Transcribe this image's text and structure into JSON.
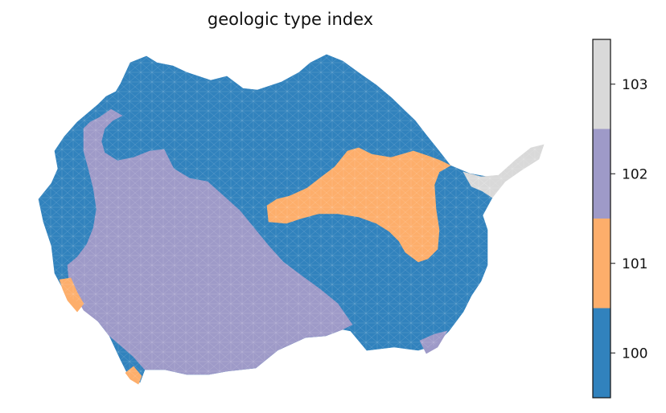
{
  "title": "geologic type index",
  "legend": {
    "type": "colorbar",
    "categories": [
      {
        "value": "100",
        "color": "#3182bd"
      },
      {
        "value": "101",
        "color": "#fdae6b"
      },
      {
        "value": "102",
        "color": "#9e9ac8"
      },
      {
        "value": "103",
        "color": "#d9d9d9"
      }
    ]
  },
  "map": {
    "mesh_line_color": "#ffffff",
    "regions": [
      {
        "category": "100",
        "color": "#3182bd"
      },
      {
        "category": "101",
        "color": "#fdae6b"
      },
      {
        "category": "102",
        "color": "#9e9ac8"
      },
      {
        "category": "103",
        "color": "#d9d9d9"
      }
    ]
  }
}
